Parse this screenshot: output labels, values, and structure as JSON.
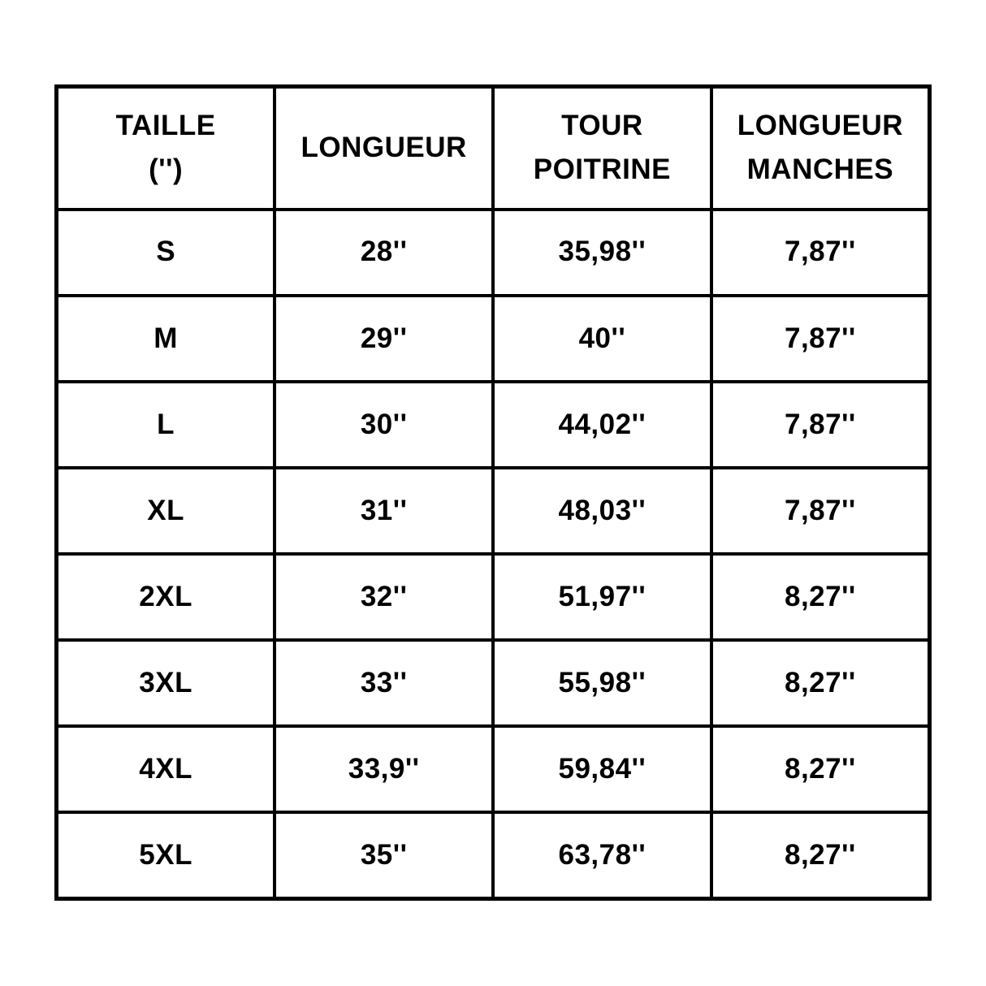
{
  "chart_data": {
    "type": "table",
    "title": "",
    "columns": [
      "TAILLE ('')",
      "LONGUEUR",
      "TOUR POITRINE",
      "LONGUEUR MANCHES"
    ],
    "rows": [
      [
        "S",
        "28''",
        "35,98''",
        "7,87''"
      ],
      [
        "M",
        "29''",
        "40''",
        "7,87''"
      ],
      [
        "L",
        "30''",
        "44,02''",
        "7,87''"
      ],
      [
        "XL",
        "31''",
        "48,03''",
        "7,87''"
      ],
      [
        "2XL",
        "32''",
        "51,97''",
        "8,27''"
      ],
      [
        "3XL",
        "33''",
        "55,98''",
        "8,27''"
      ],
      [
        "4XL",
        "33,9''",
        "59,84''",
        "8,27''"
      ],
      [
        "5XL",
        "35''",
        "63,78''",
        "8,27''"
      ]
    ]
  },
  "table": {
    "headers": [
      "TAILLE\n('')",
      "LONGUEUR",
      "TOUR\nPOITRINE",
      "LONGUEUR\nMANCHES"
    ],
    "rows": [
      [
        "S",
        "28''",
        "35,98''",
        "7,87''"
      ],
      [
        "M",
        "29''",
        "40''",
        "7,87''"
      ],
      [
        "L",
        "30''",
        "44,02''",
        "7,87''"
      ],
      [
        "XL",
        "31''",
        "48,03''",
        "7,87''"
      ],
      [
        "2XL",
        "32''",
        "51,97''",
        "8,27''"
      ],
      [
        "3XL",
        "33''",
        "55,98''",
        "8,27''"
      ],
      [
        "4XL",
        "33,9''",
        "59,84''",
        "8,27''"
      ],
      [
        "5XL",
        "35''",
        "63,78''",
        "8,27''"
      ]
    ]
  },
  "colors": {
    "background": "#ffffff",
    "border": "#000000",
    "text": "#000000"
  }
}
